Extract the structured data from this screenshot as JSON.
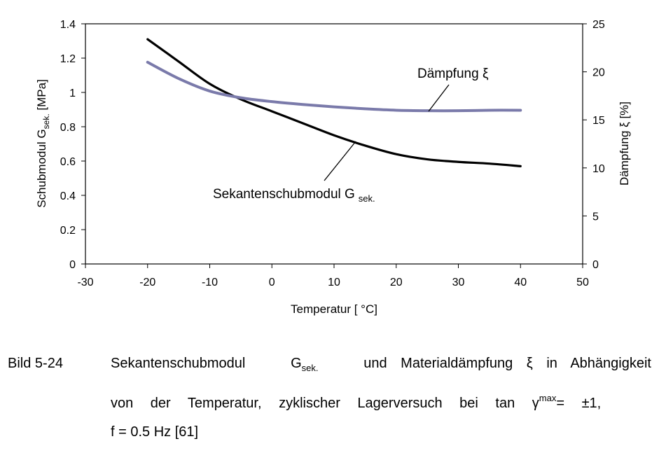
{
  "chart_data": {
    "type": "line",
    "x_axis": {
      "label": "Temperatur [ °C]",
      "lim": [
        -30,
        50
      ],
      "ticks": [
        "-30",
        "-20",
        "-10",
        "0",
        "10",
        "20",
        "30",
        "40",
        "50"
      ]
    },
    "y_left": {
      "label_main": "Schubmodul G",
      "label_sub": "sek.",
      "label_unit": " [MPa]",
      "lim": [
        0,
        1.4
      ],
      "ticks": [
        "0",
        "0.2",
        "0.4",
        "0.6",
        "0.8",
        "1",
        "1.2",
        "1.4"
      ]
    },
    "y_right": {
      "label": "Dämpfung ξ [%]",
      "lim": [
        0,
        25
      ],
      "ticks": [
        "0",
        "5",
        "10",
        "15",
        "20",
        "25"
      ]
    },
    "grid": false,
    "series": [
      {
        "name": "Sekantenschubmodul G sek.",
        "axis": "left",
        "color": "#000000",
        "x": [
          -20,
          -15,
          -10,
          -5,
          0,
          5,
          10,
          15,
          20,
          25,
          30,
          35,
          40
        ],
        "y": [
          1.31,
          1.18,
          1.05,
          0.96,
          0.89,
          0.82,
          0.75,
          0.69,
          0.64,
          0.61,
          0.595,
          0.585,
          0.57
        ]
      },
      {
        "name": "Dämpfung ξ",
        "axis": "right",
        "color": "#7a7aaa",
        "x": [
          -20,
          -15,
          -10,
          -5,
          0,
          5,
          10,
          15,
          20,
          25,
          30,
          35,
          40
        ],
        "y": [
          21.0,
          19.3,
          18.0,
          17.3,
          16.9,
          16.6,
          16.35,
          16.15,
          16.0,
          15.95,
          15.95,
          16.0,
          16.0
        ]
      }
    ],
    "annotations": [
      {
        "text_main": "Dämpfung ξ",
        "series": 1
      },
      {
        "text_main": "Sekantenschubmodul G",
        "text_sub": "sek.",
        "series": 0
      }
    ]
  },
  "caption": {
    "label": "Bild 5-24",
    "line1_a": "Sekantenschubmodul",
    "line1_g": "G",
    "line1_gsub": "sek.",
    "line1_b": "und Materialdämpfung ξ in Abhängigkeit",
    "line2_a": "von der Temperatur, zyklischer Lagerversuch bei tan γ",
    "line2_sup": "max",
    "line2_b": "= ±1,",
    "line3": "f = 0.5 Hz [61]"
  }
}
